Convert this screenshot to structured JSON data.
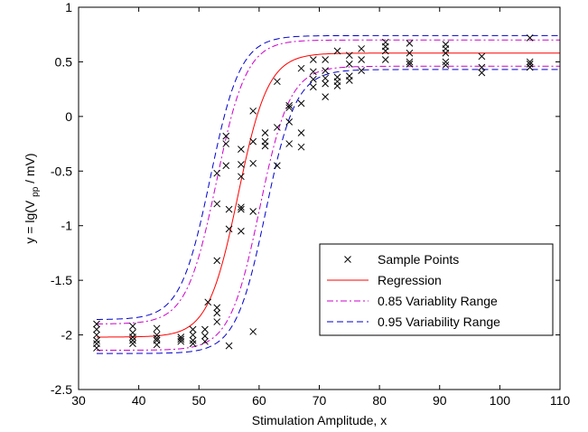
{
  "chart_data": {
    "type": "scatter",
    "title": "",
    "xlabel": "Stimulation Amplitude, x",
    "ylabel": {
      "prefix": "y = lg(V",
      "subscript": "pp",
      "suffix": " / mV)"
    },
    "xlim": [
      30,
      110
    ],
    "ylim": [
      -2.5,
      1
    ],
    "xticks": [
      30,
      40,
      50,
      60,
      70,
      80,
      90,
      100,
      110
    ],
    "yticks": [
      -2.5,
      -2,
      -1.5,
      -1,
      -0.5,
      0,
      0.5,
      1
    ],
    "xtick_labels": [
      "30",
      "40",
      "50",
      "60",
      "70",
      "80",
      "90",
      "100",
      "110"
    ],
    "ytick_labels": [
      "-2.5",
      "-2",
      "-1.5",
      "-1",
      "-0.5",
      "0",
      "0.5",
      "1"
    ],
    "grid": false,
    "legend_position": "bottom-right",
    "legend": [
      {
        "label": "Sample Points",
        "style": "marker-x",
        "color": "#000000"
      },
      {
        "label": "Regression",
        "style": "solid",
        "color": "#ff0000"
      },
      {
        "label": "0.85 Variablity Range",
        "style": "dashdot",
        "color": "#cc00cc"
      },
      {
        "label": "0.95 Variability Range",
        "style": "dashed",
        "color": "#0000cc"
      }
    ],
    "model": {
      "form": "sigmoid",
      "lower": -2.02,
      "upper": 0.58,
      "midpoint": 56.5,
      "scale": 2.5
    },
    "bands": [
      {
        "name": "0.85 Variablity Range",
        "lower_offset": -0.12,
        "upper_offset": 0.12,
        "x_shift": 3.6,
        "extra": 0.1
      },
      {
        "name": "0.95 Variability Range",
        "lower_offset": -0.15,
        "upper_offset": 0.16,
        "x_shift": 4.6,
        "extra": 0.15
      }
    ],
    "series": [
      {
        "name": "Sample Points",
        "points": [
          [
            33,
            -1.9
          ],
          [
            33,
            -1.95
          ],
          [
            33,
            -2.0
          ],
          [
            33,
            -2.05
          ],
          [
            33,
            -2.08
          ],
          [
            33,
            -2.12
          ],
          [
            39,
            -1.92
          ],
          [
            39,
            -1.98
          ],
          [
            39,
            -2.02
          ],
          [
            39,
            -2.05
          ],
          [
            39,
            -2.08
          ],
          [
            43,
            -1.94
          ],
          [
            43,
            -2.0
          ],
          [
            43,
            -2.03
          ],
          [
            43,
            -2.05
          ],
          [
            43,
            -2.09
          ],
          [
            47,
            -2.02
          ],
          [
            47,
            -2.04
          ],
          [
            47,
            -2.06
          ],
          [
            49,
            -1.95
          ],
          [
            49,
            -2.0
          ],
          [
            49,
            -2.05
          ],
          [
            49,
            -2.08
          ],
          [
            51,
            -1.95
          ],
          [
            51,
            -2.01
          ],
          [
            51,
            -2.06
          ],
          [
            51.5,
            -1.7
          ],
          [
            53,
            -1.88
          ],
          [
            53,
            -1.8
          ],
          [
            53,
            -1.75
          ],
          [
            53,
            -1.32
          ],
          [
            53,
            -0.8
          ],
          [
            53,
            -0.52
          ],
          [
            54.5,
            -0.45
          ],
          [
            54.5,
            -0.25
          ],
          [
            54.5,
            -0.18
          ],
          [
            55,
            -1.03
          ],
          [
            55,
            -0.85
          ],
          [
            55,
            -2.1
          ],
          [
            57,
            -1.05
          ],
          [
            57,
            -0.85
          ],
          [
            57,
            -0.83
          ],
          [
            57,
            -0.55
          ],
          [
            57,
            -0.44
          ],
          [
            57,
            -0.3
          ],
          [
            59,
            -1.97
          ],
          [
            59,
            -0.87
          ],
          [
            59,
            -0.43
          ],
          [
            59,
            -0.23
          ],
          [
            59,
            0.05
          ],
          [
            61,
            -0.27
          ],
          [
            61,
            -0.23
          ],
          [
            61,
            -0.15
          ],
          [
            63,
            -0.45
          ],
          [
            63,
            -0.1
          ],
          [
            63,
            0.32
          ],
          [
            65,
            -0.25
          ],
          [
            65,
            -0.05
          ],
          [
            65,
            0.08
          ],
          [
            65,
            0.1
          ],
          [
            67,
            -0.28
          ],
          [
            67,
            -0.15
          ],
          [
            67,
            0.12
          ],
          [
            67,
            0.44
          ],
          [
            69,
            0.27
          ],
          [
            69,
            0.34
          ],
          [
            69,
            0.41
          ],
          [
            69,
            0.52
          ],
          [
            71,
            0.18
          ],
          [
            71,
            0.3
          ],
          [
            71,
            0.35
          ],
          [
            71,
            0.42
          ],
          [
            71,
            0.52
          ],
          [
            73,
            0.28
          ],
          [
            73,
            0.32
          ],
          [
            73,
            0.36
          ],
          [
            73,
            0.6
          ],
          [
            75,
            0.33
          ],
          [
            75,
            0.37
          ],
          [
            75,
            0.48
          ],
          [
            75,
            0.56
          ],
          [
            77,
            0.42
          ],
          [
            77,
            0.52
          ],
          [
            77,
            0.62
          ],
          [
            81,
            0.52
          ],
          [
            81,
            0.6
          ],
          [
            81,
            0.64
          ],
          [
            81,
            0.68
          ],
          [
            85,
            0.48
          ],
          [
            85,
            0.5
          ],
          [
            85,
            0.58
          ],
          [
            85,
            0.67
          ],
          [
            91,
            0.47
          ],
          [
            91,
            0.5
          ],
          [
            91,
            0.58
          ],
          [
            91,
            0.62
          ],
          [
            91,
            0.66
          ],
          [
            97,
            0.4
          ],
          [
            97,
            0.45
          ],
          [
            97,
            0.55
          ],
          [
            105,
            0.45
          ],
          [
            105,
            0.48
          ],
          [
            105,
            0.5
          ],
          [
            105,
            0.72
          ]
        ]
      }
    ],
    "colors": {
      "markers": "#000000",
      "regression": "#ff0000",
      "band85": "#cc00cc",
      "band95": "#0000cc"
    }
  }
}
